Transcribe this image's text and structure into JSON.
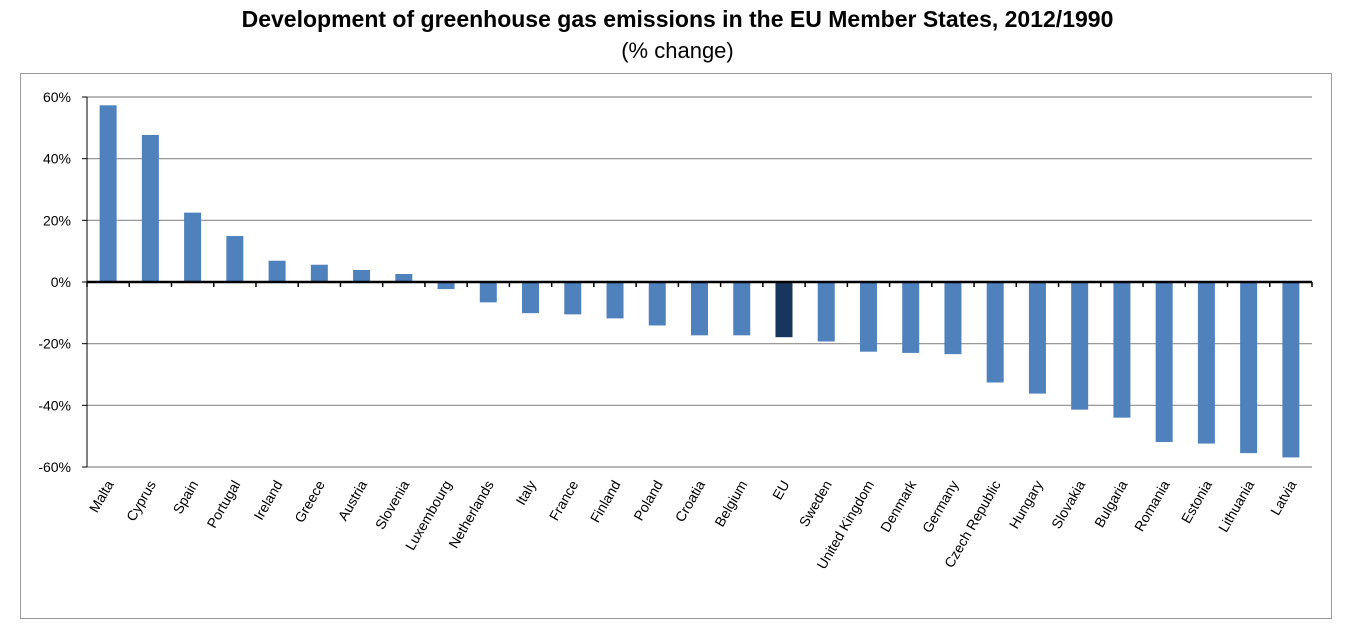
{
  "chart_data": {
    "type": "bar",
    "title": "Development of greenhouse gas emissions in the EU Member States, 2012/1990",
    "subtitle": "(% change)",
    "xlabel": "",
    "ylabel": "",
    "ylim": [
      -60,
      60
    ],
    "yticks": [
      60,
      40,
      20,
      0,
      -20,
      -40,
      -60
    ],
    "ytick_labels": [
      "60%",
      "40%",
      "20%",
      "0%",
      "-20%",
      "-40%",
      "-60%"
    ],
    "grid": true,
    "legend": "none",
    "categories": [
      "Malta",
      "Cyprus",
      "Spain",
      "Portugal",
      "Ireland",
      "Greece",
      "Austria",
      "Slovenia",
      "Luxembourg",
      "Netherlands",
      "Italy",
      "France",
      "Finland",
      "Poland",
      "Croatia",
      "Belgium",
      "EU",
      "Sweden",
      "United Kingdom",
      "Denmark",
      "Germany",
      "Czech Republic",
      "Hungary",
      "Slovakia",
      "Bulgaria",
      "Romania",
      "Estonia",
      "Lithuania",
      "Latvia"
    ],
    "values": [
      57.3,
      47.7,
      22.5,
      14.9,
      6.9,
      5.6,
      3.9,
      2.6,
      -2.3,
      -6.6,
      -10.1,
      -10.5,
      -11.8,
      -14.1,
      -17.3,
      -17.3,
      -17.9,
      -19.3,
      -22.6,
      -23.0,
      -23.4,
      -32.6,
      -36.2,
      -41.4,
      -44.0,
      -51.9,
      -52.4,
      -55.5,
      -56.9
    ],
    "colors": {
      "bar": "#4f81bd",
      "highlight": "#17365d",
      "grid": "#8c8c8c",
      "axis": "#000000"
    },
    "highlight_category": "EU"
  }
}
